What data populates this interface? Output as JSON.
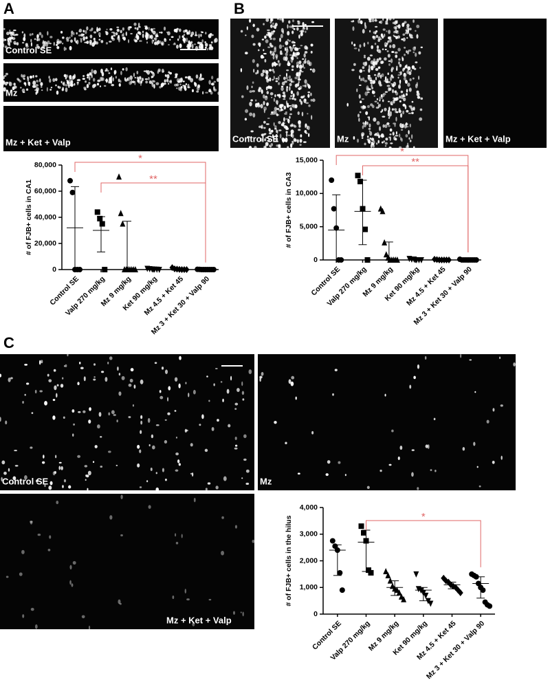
{
  "panels": [
    {
      "letter": "A",
      "images": [
        "Control SE",
        "Mz",
        "Mz + Ket + Valp"
      ]
    },
    {
      "letter": "B",
      "images": [
        "Control SE",
        "Mz",
        "Mz + Ket + Valp"
      ]
    },
    {
      "letter": "C",
      "images": [
        "Control SE",
        "Mz",
        "Mz + Ket + Valp"
      ]
    }
  ],
  "chart_data": [
    {
      "type": "dot",
      "ylabel": "# of FJB+ cells in CA1",
      "categories": [
        "Control SE",
        "Valp 270 mg/kg",
        "Mz 9 mg/kg",
        "Ket 90 mg/kg",
        "Mz 4.5 + Ket 45",
        "Mz 3 + Ket 30 + Valp 90"
      ],
      "markers": [
        "circle",
        "square",
        "triangle",
        "triangle-down",
        "diamond",
        "circle"
      ],
      "color": "#000000",
      "points": [
        [
          68000,
          59000,
          0,
          0,
          0
        ],
        [
          44000,
          39000,
          35000,
          0
        ],
        [
          71000,
          43000,
          35000,
          0,
          0,
          0,
          0,
          0,
          0,
          0
        ],
        [
          800,
          500,
          300,
          200,
          100,
          0
        ],
        [
          1500,
          500,
          300,
          100,
          0,
          0,
          0
        ],
        [
          200,
          100,
          0,
          0,
          0,
          0,
          0,
          0,
          0
        ]
      ],
      "center": [
        32000,
        30000,
        0,
        200,
        100,
        0
      ],
      "lower": [
        0,
        13500,
        0,
        0,
        0,
        0
      ],
      "upper": [
        63500,
        40500,
        37000,
        500,
        300,
        100
      ],
      "ylim": [
        0,
        80000
      ],
      "yticks": [
        0,
        {
          "value": 20000,
          "label": "20,000"
        },
        {
          "value": 40000,
          "label": "40,000"
        },
        {
          "value": 60000,
          "label": "60,000"
        },
        {
          "value": 80000,
          "label": "80,000"
        }
      ],
      "annotations": [
        {
          "text": "*",
          "from": 0,
          "to": 5
        },
        {
          "text": "**",
          "from": 1,
          "to": 5
        }
      ],
      "annotation_color": "#e06666"
    },
    {
      "type": "dot",
      "ylabel": "# of FJB+ cells in CA3",
      "categories": [
        "Control SE",
        "Valp 270 mg/kg",
        "Mz 9 mg/kg",
        "Ket 90 mg/kg",
        "Mz 4.5 + Ket 45",
        "Mz 3 + Ket 30 + Valp 90"
      ],
      "markers": [
        "circle",
        "square",
        "triangle",
        "triangle-down",
        "diamond",
        "circle"
      ],
      "color": "#000000",
      "points": [
        [
          12000,
          7700,
          4800,
          0,
          0
        ],
        [
          12700,
          11800,
          7700,
          4600,
          0
        ],
        [
          7700,
          7300,
          2600,
          800,
          300,
          0,
          0,
          0,
          0,
          0
        ],
        [
          200,
          100,
          100,
          0,
          0,
          0
        ],
        [
          100,
          50,
          0,
          0,
          0,
          0,
          0
        ],
        [
          100,
          0,
          0,
          0,
          0,
          0,
          0,
          0,
          0
        ]
      ],
      "center": [
        4500,
        7300,
        0,
        0,
        0,
        0
      ],
      "lower": [
        0,
        2300,
        0,
        0,
        0,
        0
      ],
      "upper": [
        9800,
        12000,
        2700,
        100,
        50,
        0
      ],
      "ylim": [
        0,
        15000
      ],
      "yticks": [
        0,
        {
          "value": 5000,
          "label": "5,000"
        },
        {
          "value": 10000,
          "label": "10,000"
        },
        {
          "value": 15000,
          "label": "15,000"
        }
      ],
      "annotations": [
        {
          "text": "*",
          "from": 0,
          "to": 5
        },
        {
          "text": "**",
          "from": 1,
          "to": 5
        }
      ],
      "annotation_color": "#e06666"
    },
    {
      "type": "dot",
      "ylabel": "# of FJB+ cells in the hilus",
      "categories": [
        "Control SE",
        "Valp 270 mg/kg",
        "Mz 9 mg/kg",
        "Ket 90 mg/kg",
        "Mz 4.5 + Ket 45",
        "Mz 3 + Ket 30 + Valp 90"
      ],
      "markers": [
        "circle",
        "square",
        "triangle",
        "triangle-down",
        "diamond",
        "circle"
      ],
      "color": "#000000",
      "points": [
        [
          2750,
          2550,
          2400,
          1550,
          900
        ],
        [
          3300,
          3050,
          2750,
          1650,
          1550
        ],
        [
          1600,
          1450,
          1250,
          1050,
          950,
          900,
          800,
          650,
          550
        ],
        [
          1500,
          950,
          900,
          800,
          700,
          500,
          400
        ],
        [
          1350,
          1250,
          1200,
          1100,
          1050,
          1000,
          900,
          800
        ],
        [
          1500,
          1450,
          1400,
          1150,
          1000,
          900,
          450,
          350,
          300
        ]
      ],
      "center": [
        2400,
        2700,
        1000,
        900,
        1100,
        1150
      ],
      "lower": [
        1450,
        1600,
        700,
        500,
        950,
        600
      ],
      "upper": [
        2600,
        3150,
        1250,
        1000,
        1200,
        1400
      ],
      "ylim": [
        0,
        4000
      ],
      "yticks": [
        0,
        {
          "value": 1000,
          "label": "1,000"
        },
        {
          "value": 2000,
          "label": "2,000"
        },
        {
          "value": 3000,
          "label": "3,000"
        },
        {
          "value": 4000,
          "label": "4,000"
        }
      ],
      "annotations": [
        {
          "text": "*",
          "from": 1,
          "to": 5
        }
      ],
      "annotation_color": "#e06666"
    }
  ]
}
